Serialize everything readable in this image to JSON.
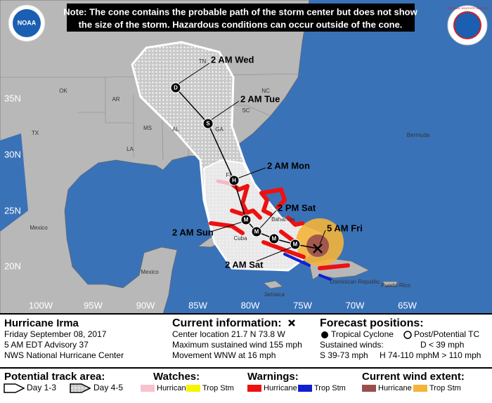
{
  "note": [
    "Note: The cone contains the probable path of the storm center but does not show",
    "the size of the storm. Hazardous conditions can occur outside of the cone."
  ],
  "logos": {
    "noaa": "NOAA",
    "nws": "NATIONAL WEATHER SERVICE"
  },
  "map": {
    "lat_labels": [
      "35N",
      "30N",
      "25N",
      "20N"
    ],
    "lon_labels": [
      "100W",
      "95W",
      "90W",
      "85W",
      "80W",
      "75W",
      "70W",
      "65W"
    ],
    "places": [
      "OK",
      "AR",
      "TN",
      "NC",
      "SC",
      "MS",
      "AL",
      "GA",
      "TX",
      "LA",
      "FL",
      "Bermuda",
      "Mexico",
      "Mexico",
      "Cuba",
      "Bahamas",
      "Jamaica",
      "Dominican Republic",
      "Puerto Rico"
    ],
    "forecast_labels": [
      "2 AM Wed",
      "2 AM Tue",
      "2 AM Mon",
      "2 PM Sat",
      "5 AM Fri",
      "2 AM Sun",
      "2 AM Sat"
    ],
    "markers": [
      "D",
      "S",
      "H",
      "M",
      "M",
      "M",
      "M"
    ]
  },
  "info": {
    "storm": {
      "title": "Hurricane Irma",
      "lines": [
        "Friday September 08, 2017",
        "5 AM EDT Advisory 37",
        "NWS National Hurricane Center"
      ]
    },
    "current": {
      "title": "Current information:",
      "lines": [
        "Center location 21.7 N 73.8 W",
        "Maximum sustained wind 155 mph",
        "Movement WNW at 16 mph"
      ]
    },
    "forecast": {
      "title": "Forecast positions:",
      "tropical": "Tropical Cyclone",
      "post": "Post/Potential TC",
      "winds": "Sustained winds:",
      "d": "D < 39 mph",
      "s": "S 39-73 mph",
      "h": "H 74-110 mph",
      "m": "M > 110 mph"
    }
  },
  "legend": {
    "track": {
      "title": "Potential track area:",
      "day13": "Day 1-3",
      "day45": "Day 4-5"
    },
    "watches": {
      "title": "Watches:",
      "hurricane": "Hurricane",
      "tropstm": "Trop Stm"
    },
    "warnings": {
      "title": "Warnings:",
      "hurricane": "Hurricane",
      "tropstm": "Trop Stm"
    },
    "wind": {
      "title": "Current wind extent:",
      "hurricane": "Hurricane",
      "tropstm": "Trop Stm"
    }
  }
}
